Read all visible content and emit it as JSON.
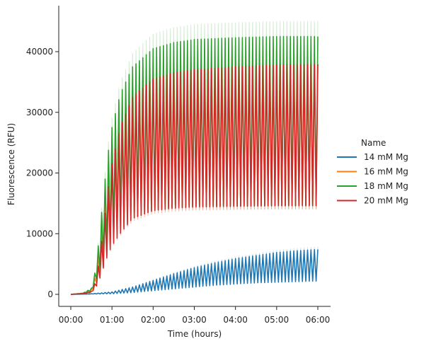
{
  "chart_data": {
    "type": "line",
    "xlabel": "Time (hours)",
    "ylabel": "Fluorescence (RFU)",
    "x_unit": "hours",
    "xlim": [
      0,
      6
    ],
    "ylim": [
      0,
      45000
    ],
    "x_ticks": [
      {
        "value": 0,
        "label": "00:00"
      },
      {
        "value": 1,
        "label": "01:00"
      },
      {
        "value": 2,
        "label": "02:00"
      },
      {
        "value": 3,
        "label": "03:00"
      },
      {
        "value": 4,
        "label": "04:00"
      },
      {
        "value": 5,
        "label": "05:00"
      },
      {
        "value": 6,
        "label": "06:00"
      }
    ],
    "y_ticks": [
      {
        "value": 0,
        "label": "0"
      },
      {
        "value": 10000,
        "label": "10000"
      },
      {
        "value": 20000,
        "label": "20000"
      },
      {
        "value": 30000,
        "label": "30000"
      },
      {
        "value": 40000,
        "label": "40000"
      }
    ],
    "grid": false,
    "legend": {
      "title": "Name",
      "position": "right"
    },
    "oscillating": true,
    "series": [
      {
        "name": "14 mM Mg",
        "color": "#1f77b4",
        "x": [
          0,
          0.5,
          1,
          1.5,
          2,
          2.5,
          3,
          3.5,
          4,
          4.5,
          5,
          5.5,
          6
        ],
        "upper": [
          0,
          100,
          400,
          1200,
          2300,
          3400,
          4400,
          5200,
          5900,
          6400,
          6900,
          7200,
          7400
        ],
        "lower": [
          0,
          50,
          100,
          300,
          600,
          900,
          1200,
          1500,
          1700,
          1900,
          2000,
          2100,
          2200
        ]
      },
      {
        "name": "16 mM Mg",
        "color": "#ff7f0e",
        "x": [
          0,
          0.3,
          0.5,
          0.6,
          0.7,
          0.8,
          0.9,
          1,
          1.2,
          1.5,
          2,
          2.5,
          3,
          4,
          5,
          6
        ],
        "upper": [
          0,
          200,
          800,
          3000,
          8000,
          14000,
          20000,
          24000,
          29000,
          33000,
          35500,
          36500,
          37000,
          37500,
          37800,
          37900
        ],
        "lower": [
          0,
          150,
          500,
          1500,
          3000,
          5000,
          7000,
          8500,
          10500,
          12500,
          13800,
          14200,
          14400,
          14500,
          14600,
          14600
        ]
      },
      {
        "name": "18 mM Mg",
        "color": "#2ca02c",
        "x": [
          0,
          0.3,
          0.5,
          0.6,
          0.7,
          0.8,
          0.9,
          1,
          1.2,
          1.5,
          2,
          2.5,
          3,
          4,
          5,
          6
        ],
        "upper": [
          0,
          200,
          1000,
          4000,
          10000,
          17000,
          23000,
          27500,
          33000,
          37500,
          40500,
          41500,
          42000,
          42300,
          42500,
          42500
        ],
        "lower": [
          0,
          150,
          600,
          2000,
          4000,
          6500,
          8500,
          10000,
          12000,
          13500,
          14200,
          14500,
          14600,
          14600,
          14600,
          14600
        ]
      },
      {
        "name": "20 mM Mg",
        "color": "#d62728",
        "x": [
          0,
          0.3,
          0.5,
          0.6,
          0.7,
          0.8,
          0.9,
          1,
          1.2,
          1.5,
          2,
          2.5,
          3,
          4,
          5,
          6
        ],
        "upper": [
          0,
          150,
          500,
          2000,
          6000,
          11500,
          17000,
          21500,
          27500,
          32500,
          35500,
          36500,
          37000,
          37500,
          37800,
          37900
        ],
        "lower": [
          0,
          100,
          300,
          1000,
          2500,
          4500,
          6500,
          8000,
          10000,
          12500,
          13800,
          14200,
          14400,
          14500,
          14600,
          14600
        ]
      }
    ]
  }
}
